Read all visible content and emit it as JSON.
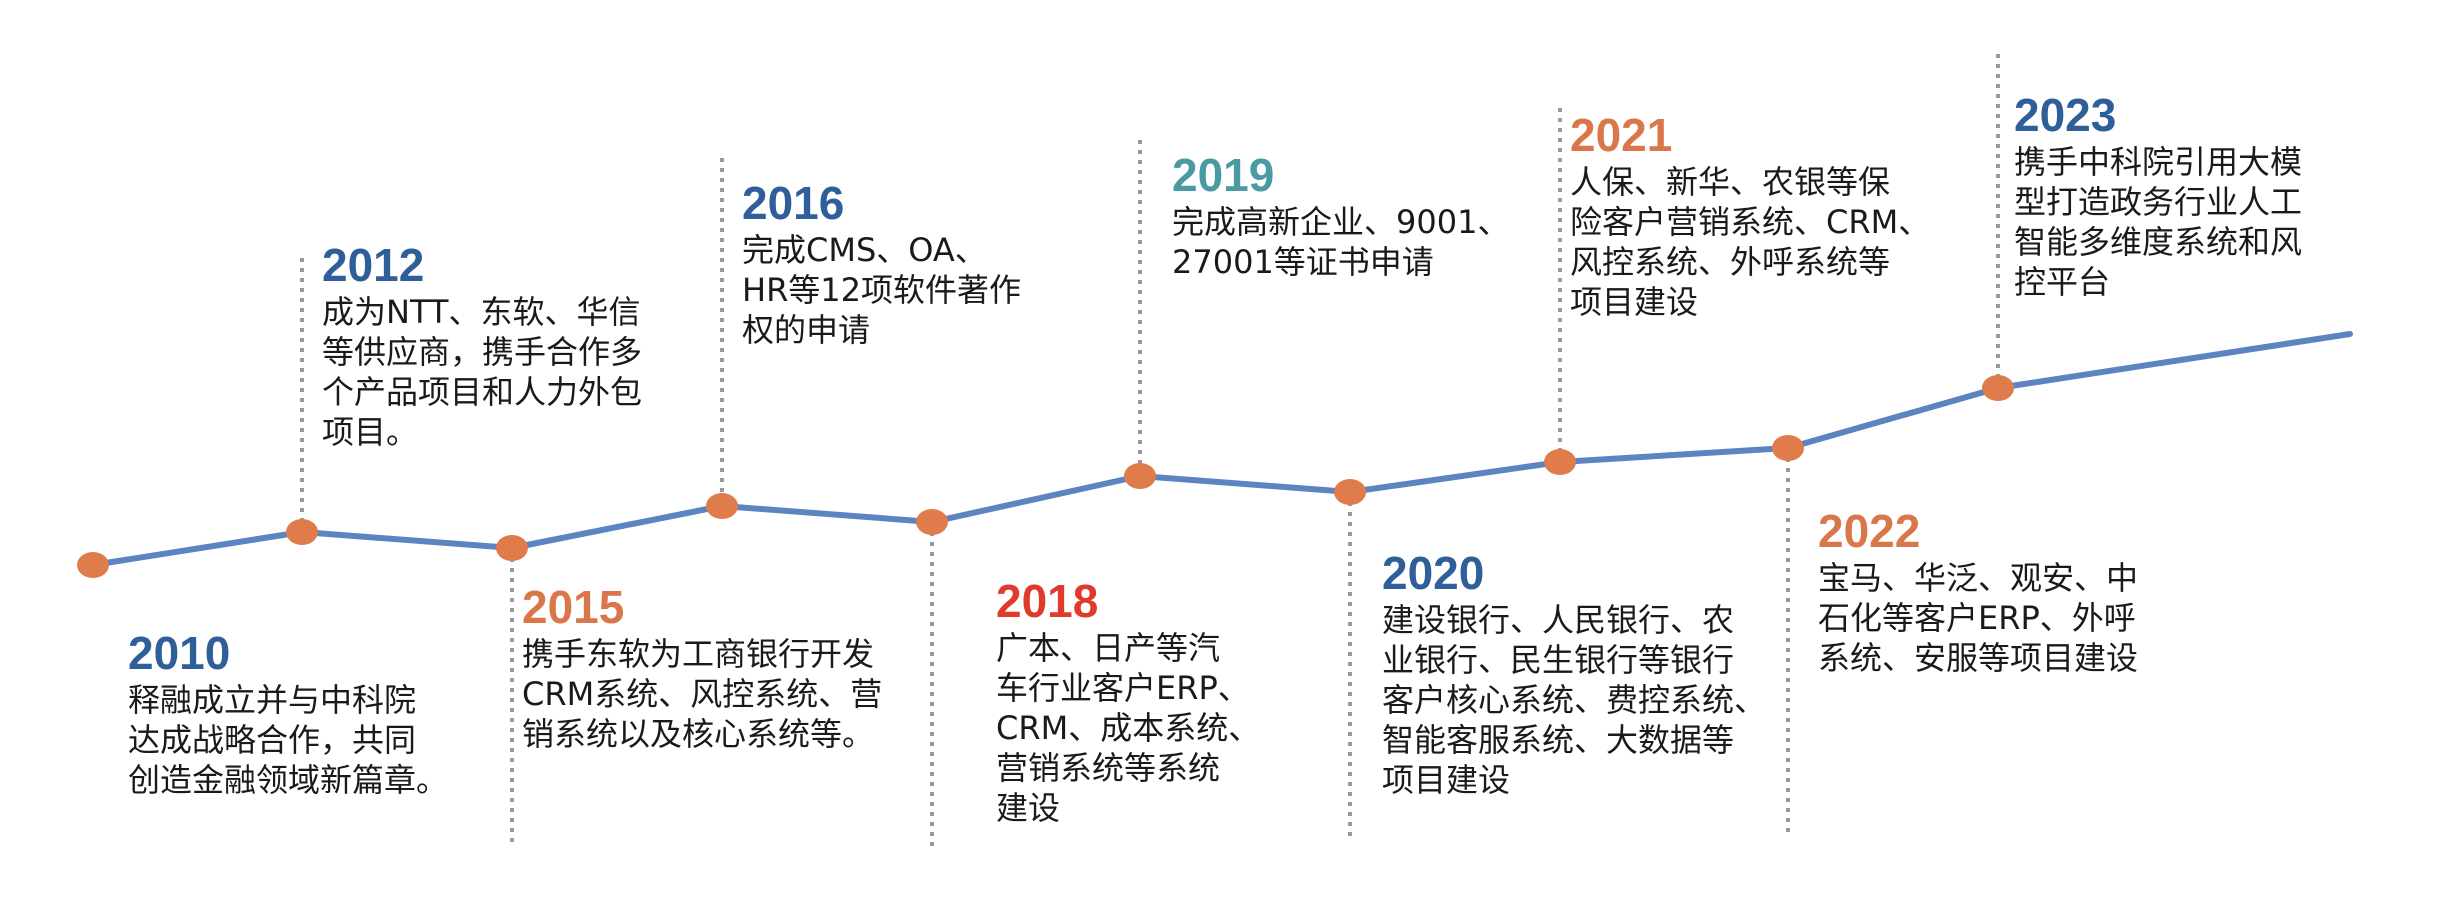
{
  "colors": {
    "line": "#5b84c0",
    "marker": "#e07b4c",
    "connector": "#999999",
    "blue": "#2e5f99",
    "orange": "#d9774a",
    "teal": "#4a9aa3",
    "red": "#e03a2c"
  },
  "milestones": [
    {
      "year": "2010",
      "color": "#2e5f99",
      "lines": [
        "释融成立并与中科院",
        "达成战略合作，共同",
        "创造金融领域新篇章。"
      ]
    },
    {
      "year": "2012",
      "color": "#2e5f99",
      "lines": [
        "成为NTT、东软、华信",
        "等供应商，携手合作多",
        "个产品项目和人力外包",
        "项目。"
      ]
    },
    {
      "year": "2015",
      "color": "#d9774a",
      "lines": [
        "携手东软为工商银行开发",
        "CRM系统、风控系统、营",
        "销系统以及核心系统等。"
      ]
    },
    {
      "year": "2016",
      "color": "#2e5f99",
      "lines": [
        "完成CMS、OA、",
        "HR等12项软件著作",
        "权的申请"
      ]
    },
    {
      "year": "2018",
      "color": "#e03a2c",
      "lines": [
        "广本、日产等汽",
        "车行业客户ERP、",
        "CRM、成本系统、",
        "营销系统等系统",
        "建设"
      ]
    },
    {
      "year": "2019",
      "color": "#4a9aa3",
      "lines": [
        "完成高新企业、9001、",
        "27001等证书申请"
      ]
    },
    {
      "year": "2020",
      "color": "#2e5f99",
      "lines": [
        "建设银行、人民银行、农",
        "业银行、民生银行等银行",
        "客户核心系统、费控系统、",
        "智能客服系统、大数据等",
        "项目建设"
      ]
    },
    {
      "year": "2021",
      "color": "#d9774a",
      "lines": [
        "人保、新华、农银等保",
        "险客户营销系统、CRM、",
        "风控系统、外呼系统等",
        "项目建设"
      ]
    },
    {
      "year": "2022",
      "color": "#d9774a",
      "lines": [
        "宝马、华泛、观安、中",
        "石化等客户ERP、外呼",
        "系统、安服等项目建设"
      ]
    },
    {
      "year": "2023",
      "color": "#2e5f99",
      "lines": [
        "携手中科院引用大模",
        "型打造政务行业人工",
        "智能多维度系统和风",
        "控平台"
      ]
    }
  ]
}
